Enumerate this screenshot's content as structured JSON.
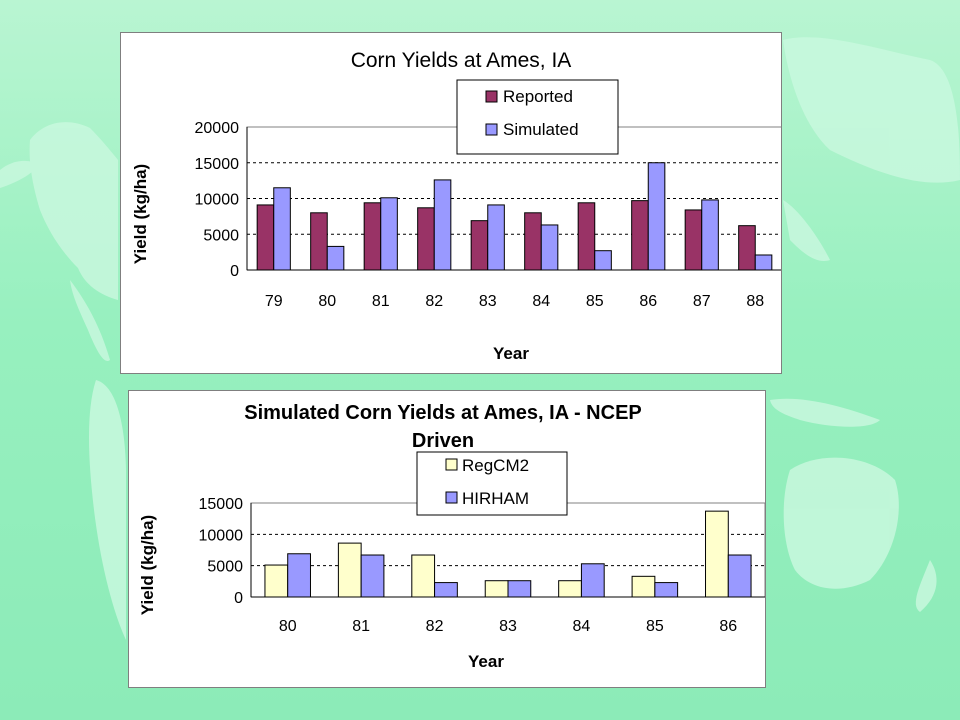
{
  "colors": {
    "reported": "#993366",
    "simulated": "#9999ff",
    "regcm2": "#ffffcc",
    "hirham": "#9999ff",
    "background": "#9cf0c4",
    "land": "#c4f7dc"
  },
  "chart_data": [
    {
      "type": "bar",
      "title": "Corn Yields at Ames, IA",
      "xlabel": "Year",
      "ylabel": "Yield (kg/ha)",
      "categories": [
        "79",
        "80",
        "81",
        "82",
        "83",
        "84",
        "85",
        "86",
        "87",
        "88"
      ],
      "series": [
        {
          "name": "Reported",
          "values": [
            9100,
            8000,
            9400,
            8700,
            6900,
            8000,
            9400,
            9700,
            8400,
            6200
          ]
        },
        {
          "name": "Simulated",
          "values": [
            11500,
            3300,
            10100,
            12600,
            9100,
            6300,
            2700,
            15000,
            9800,
            2100
          ]
        }
      ],
      "ylim": [
        0,
        20000
      ],
      "yticks": [
        0,
        5000,
        10000,
        15000,
        20000
      ],
      "grid": true,
      "legend": "top-right"
    },
    {
      "type": "bar",
      "title": "Simulated Corn Yields at Ames, IA - NCEP Driven",
      "title_lines": [
        "Simulated Corn Yields at Ames, IA - NCEP",
        "Driven"
      ],
      "xlabel": "Year",
      "ylabel": "Yield (kg/ha)",
      "categories": [
        "80",
        "81",
        "82",
        "83",
        "84",
        "85",
        "86"
      ],
      "series": [
        {
          "name": "RegCM2",
          "values": [
            5100,
            8600,
            6700,
            2600,
            2600,
            3300,
            13700
          ]
        },
        {
          "name": "HIRHAM",
          "values": [
            6900,
            6700,
            2300,
            2600,
            5300,
            2300,
            6700
          ]
        }
      ],
      "ylim": [
        0,
        15000
      ],
      "yticks": [
        0,
        5000,
        10000,
        15000
      ],
      "grid": true,
      "legend": "top-center"
    }
  ]
}
